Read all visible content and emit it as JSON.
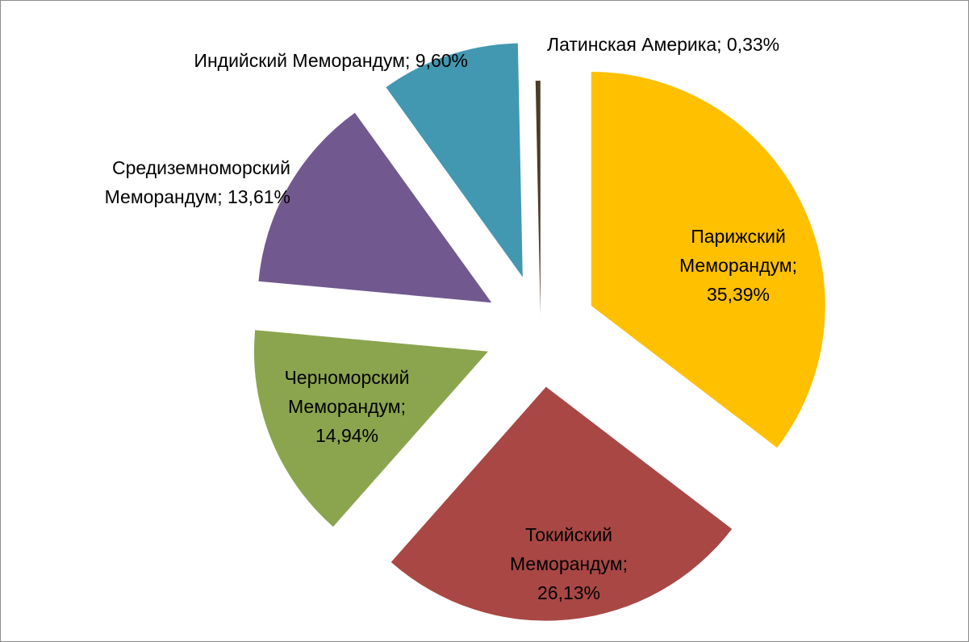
{
  "chart_data": {
    "type": "pie",
    "categories": [
      "Парижский Меморандум;",
      "Токийский Меморандум;",
      "Черноморский Меморандум;",
      "Средиземноморский Меморандум;",
      "Индийский Меморандум;",
      "Латинская Америка;"
    ],
    "values": [
      35.39,
      26.13,
      14.94,
      13.61,
      9.6,
      0.33
    ],
    "value_labels": [
      "35,39%",
      "26,13%",
      "14,94%",
      "13,61%",
      "9,60%",
      "0,33%"
    ],
    "colors": [
      "#ffc000",
      "#a94745",
      "#8ba54e",
      "#71598f",
      "#4298b0",
      "#4b3c26"
    ]
  }
}
